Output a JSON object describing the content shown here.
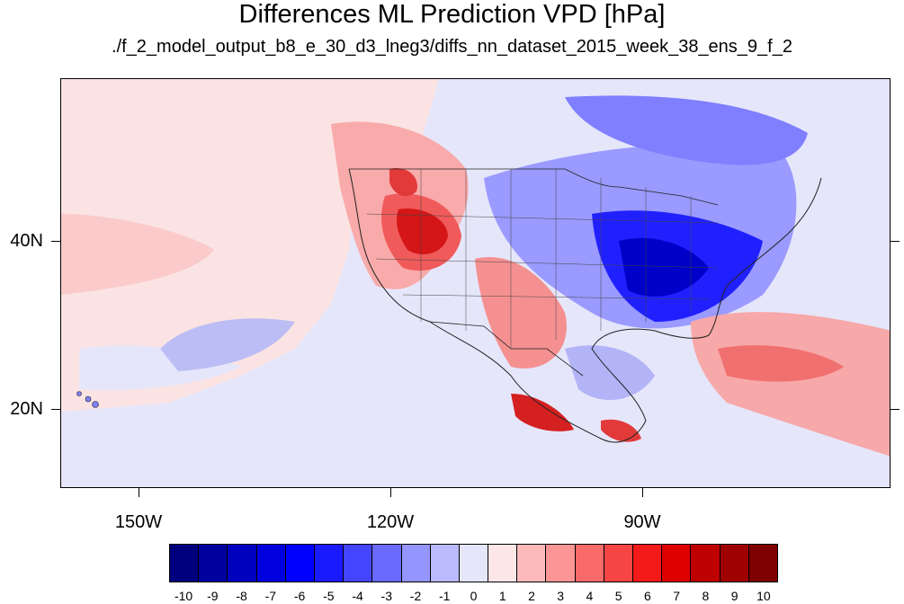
{
  "title": "Differences ML Prediction VPD [hPa]",
  "subtitle": "./f_2_model_output_b8_e_30_d3_lneg3/diffs_nn_dataset_2015_week_38_ens_9_f_2",
  "lat_labels": [
    "40N",
    "20N"
  ],
  "lon_labels": [
    "150W",
    "120W",
    "90W"
  ],
  "colorbar": {
    "labels": [
      "-10",
      "-9",
      "-8",
      "-7",
      "-6",
      "-5",
      "-4",
      "-3",
      "-2",
      "-1",
      "0",
      "1",
      "2",
      "3",
      "4",
      "5",
      "6",
      "7",
      "8",
      "9",
      "10"
    ],
    "colors": [
      "#00007f",
      "#00009f",
      "#0000bf",
      "#0000df",
      "#0000ff",
      "#1a1aff",
      "#4545ff",
      "#6a6aff",
      "#9595ff",
      "#babaff",
      "#e6e6fb",
      "#fde6e6",
      "#fdbaba",
      "#fc9595",
      "#f96a6a",
      "#f54545",
      "#f51a1a",
      "#df0000",
      "#bf0000",
      "#9f0000",
      "#7f0000"
    ]
  },
  "colors": {
    "background_positive": "#fbe3e3",
    "background_negative": "#e6e6fb",
    "coast": "#222222"
  }
}
